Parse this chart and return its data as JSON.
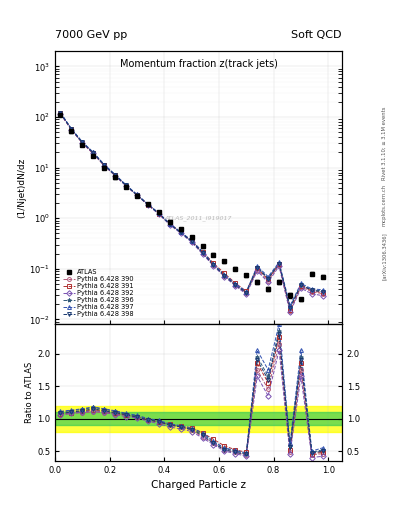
{
  "title_top": "7000 GeV pp",
  "title_right": "Soft QCD",
  "plot_title": "Momentum fraction z(track jets)",
  "ylabel_main": "(1/Njet)dN/dz",
  "ylabel_ratio": "Ratio to ATLAS",
  "xlabel": "Charged Particle z",
  "right_label": "Rivet 3.1.10; ≥ 3.1M events",
  "arxiv_label": "[arXiv:1306.3436]",
  "watermark": "ATLAS_2011_I919017",
  "mcplots_label": "mcplots.cern.ch",
  "legend_entries": [
    "ATLAS",
    "Pythia 6.428 390",
    "Pythia 6.428 391",
    "Pythia 6.428 392",
    "Pythia 6.428 396",
    "Pythia 6.428 397",
    "Pythia 6.428 398"
  ],
  "colors": {
    "ATLAS": "#000000",
    "390": "#b05878",
    "391": "#b03030",
    "392": "#7850b0",
    "396": "#305878",
    "397": "#3050b0",
    "398": "#183870"
  },
  "x_data": [
    0.02,
    0.06,
    0.1,
    0.14,
    0.18,
    0.22,
    0.26,
    0.3,
    0.34,
    0.38,
    0.42,
    0.46,
    0.5,
    0.54,
    0.58,
    0.62,
    0.66,
    0.7,
    0.74,
    0.78,
    0.82,
    0.86,
    0.9,
    0.94,
    0.98
  ],
  "atlas_y": [
    110,
    52,
    28,
    17,
    10,
    6.5,
    4.2,
    2.8,
    1.9,
    1.3,
    0.85,
    0.6,
    0.42,
    0.28,
    0.19,
    0.14,
    0.1,
    0.075,
    0.055,
    0.04,
    0.055,
    0.03,
    0.025,
    0.08,
    0.07
  ],
  "atlas_yerr": [
    6,
    3,
    1.8,
    1.1,
    0.65,
    0.42,
    0.28,
    0.18,
    0.12,
    0.085,
    0.055,
    0.038,
    0.028,
    0.019,
    0.013,
    0.01,
    0.007,
    0.005,
    0.004,
    0.003,
    0.004,
    0.003,
    0.002,
    0.006,
    0.005
  ],
  "mc_sf": {
    "390": [
      1.05,
      1.08,
      1.09,
      1.1,
      1.09,
      1.07,
      1.05,
      1.02,
      0.98,
      0.94,
      0.9,
      0.87,
      0.82,
      0.72,
      0.62,
      0.52,
      0.48,
      0.44,
      1.75,
      1.45,
      2.15,
      0.48,
      1.75,
      0.44,
      0.46
    ],
    "391": [
      1.07,
      1.09,
      1.11,
      1.13,
      1.11,
      1.08,
      1.05,
      1.03,
      0.98,
      0.95,
      0.91,
      0.88,
      0.85,
      0.78,
      0.68,
      0.58,
      0.52,
      0.48,
      1.85,
      1.55,
      2.25,
      0.52,
      1.85,
      0.46,
      0.48
    ],
    "392": [
      1.06,
      1.08,
      1.1,
      1.12,
      1.1,
      1.06,
      1.03,
      1.01,
      0.96,
      0.92,
      0.87,
      0.84,
      0.8,
      0.7,
      0.6,
      0.5,
      0.46,
      0.42,
      1.65,
      1.35,
      2.05,
      0.46,
      1.65,
      0.4,
      0.42
    ],
    "396": [
      1.1,
      1.12,
      1.14,
      1.17,
      1.14,
      1.11,
      1.07,
      1.04,
      0.99,
      0.96,
      0.91,
      0.88,
      0.84,
      0.76,
      0.64,
      0.54,
      0.5,
      0.46,
      1.95,
      1.65,
      2.35,
      0.58,
      1.95,
      0.48,
      0.52
    ],
    "397": [
      1.11,
      1.13,
      1.15,
      1.18,
      1.15,
      1.12,
      1.08,
      1.05,
      1.0,
      0.97,
      0.92,
      0.89,
      0.86,
      0.78,
      0.65,
      0.55,
      0.51,
      0.47,
      2.05,
      1.75,
      2.45,
      0.62,
      2.05,
      0.5,
      0.55
    ],
    "398": [
      1.08,
      1.1,
      1.12,
      1.15,
      1.12,
      1.09,
      1.06,
      1.02,
      0.98,
      0.95,
      0.9,
      0.87,
      0.83,
      0.74,
      0.62,
      0.52,
      0.48,
      0.45,
      1.9,
      1.6,
      2.3,
      0.56,
      1.9,
      0.47,
      0.5
    ]
  },
  "ylim_main": [
    0.008,
    2000
  ],
  "ylim_ratio": [
    0.35,
    2.45
  ],
  "ratio_yticks": [
    0.5,
    1.0,
    1.5,
    2.0
  ],
  "xmin": 0.0,
  "xmax": 1.05,
  "band_yellow": [
    0.8,
    1.2
  ],
  "band_green": [
    0.9,
    1.1
  ]
}
